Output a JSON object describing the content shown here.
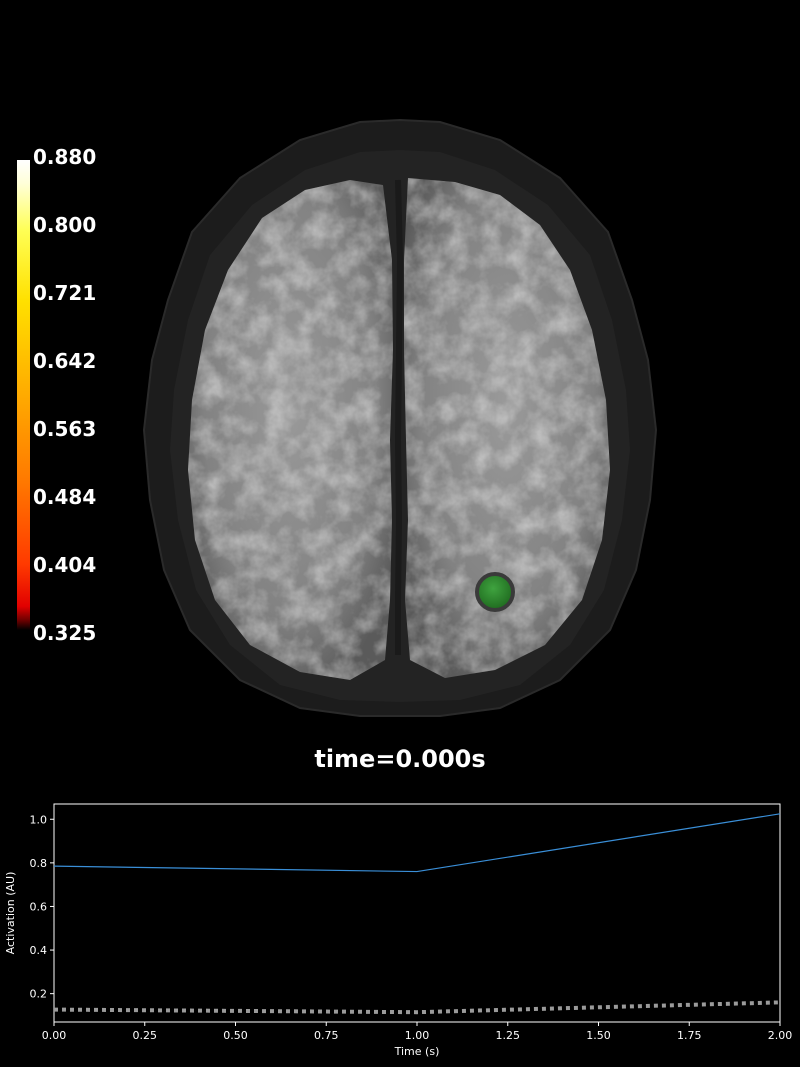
{
  "colorbar": {
    "labels": [
      "0.880",
      "0.800",
      "0.721",
      "0.642",
      "0.563",
      "0.484",
      "0.404",
      "0.325"
    ],
    "min": 0.325,
    "max": 0.88,
    "colormap": "hot"
  },
  "time_label": "time=0.000s",
  "marker": {
    "color": "#2e8b2e"
  },
  "chart_data": {
    "type": "line",
    "title": "",
    "xlabel": "Time (s)",
    "ylabel": "Activation (AU)",
    "xlim": [
      0,
      2
    ],
    "ylim": [
      0.07,
      1.07
    ],
    "xticks": [
      "0.00",
      "0.25",
      "0.50",
      "0.75",
      "1.00",
      "1.25",
      "1.50",
      "1.75",
      "2.00"
    ],
    "yticks": [
      "0.2",
      "0.4",
      "0.6",
      "0.8",
      "1.0"
    ],
    "series": [
      {
        "style": "solid",
        "color": "#3a8fd8",
        "x": [
          0,
          1,
          2
        ],
        "y": [
          0.785,
          0.76,
          1.025
        ]
      },
      {
        "style": "dotted",
        "color": "#9a9a9a",
        "x": [
          0,
          1,
          2
        ],
        "y": [
          0.127,
          0.115,
          0.16
        ]
      }
    ],
    "grid": false,
    "legend": "none"
  }
}
